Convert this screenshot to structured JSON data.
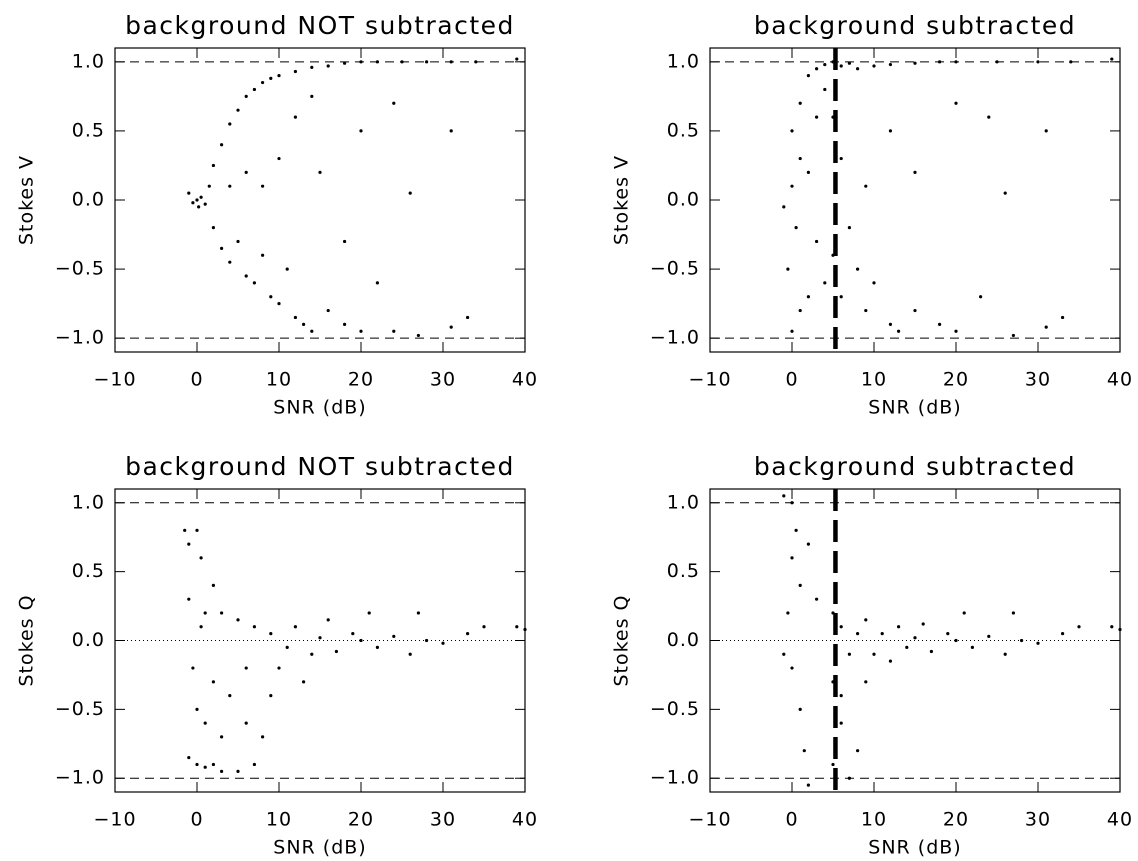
{
  "chart_data": [
    {
      "type": "scatter",
      "title": "background NOT subtracted",
      "xlabel": "SNR (dB)",
      "ylabel": "Stokes V",
      "color": "#000000",
      "xlim": [
        -10,
        40
      ],
      "ylim": [
        -1.1,
        1.1
      ],
      "xticks": [
        {
          "value": -10,
          "label": "−10"
        },
        0,
        10,
        20,
        30,
        40
      ],
      "yticks": [
        {
          "value": -1,
          "label": "−1.0"
        },
        {
          "value": -0.5,
          "label": "−0.5"
        },
        {
          "value": 0,
          "label": "0.0"
        },
        {
          "value": 0.5,
          "label": "0.5"
        },
        {
          "value": 1,
          "label": "1.0"
        }
      ],
      "dashed_hlines": [
        -1,
        1
      ],
      "x": [
        0,
        0.5,
        -1,
        1,
        0.2,
        -0.5,
        1.5,
        2,
        3,
        4,
        5,
        6,
        7,
        8,
        9,
        10,
        12,
        14,
        16,
        18,
        20,
        22,
        25,
        28,
        31,
        34,
        39,
        31,
        26,
        2,
        3,
        4,
        5,
        6,
        7,
        8,
        9,
        10,
        11,
        12,
        13,
        14,
        16,
        18,
        20,
        22,
        24,
        27,
        31,
        33,
        10,
        12,
        15,
        8,
        14,
        20,
        24,
        18,
        6,
        4
      ],
      "values": [
        0,
        0.02,
        0.05,
        -0.03,
        -0.05,
        -0.02,
        0.1,
        0.25,
        0.4,
        0.55,
        0.65,
        0.75,
        0.8,
        0.85,
        0.88,
        0.9,
        0.93,
        0.96,
        0.97,
        0.99,
        1,
        1,
        1,
        1,
        1,
        1,
        1.02,
        0.5,
        0.05,
        -0.2,
        -0.35,
        -0.45,
        -0.3,
        -0.55,
        -0.6,
        -0.4,
        -0.7,
        -0.75,
        -0.5,
        -0.85,
        -0.9,
        -0.95,
        -0.8,
        -0.9,
        -0.95,
        -0.6,
        -0.95,
        -0.98,
        -0.92,
        -0.85,
        0.3,
        0.6,
        0.2,
        0.1,
        0.75,
        0.5,
        0.7,
        -0.3,
        0.2,
        0.1
      ]
    },
    {
      "type": "scatter",
      "title": "background subtracted",
      "xlabel": "SNR (dB)",
      "ylabel": "Stokes V",
      "color": "#000000",
      "xlim": [
        -10,
        40
      ],
      "ylim": [
        -1.1,
        1.1
      ],
      "xticks": [
        {
          "value": -10,
          "label": "−10"
        },
        0,
        10,
        20,
        30,
        40
      ],
      "yticks": [
        {
          "value": -1,
          "label": "−1.0"
        },
        {
          "value": -0.5,
          "label": "−0.5"
        },
        {
          "value": 0,
          "label": "0.0"
        },
        {
          "value": 0.5,
          "label": "0.5"
        },
        {
          "value": 1,
          "label": "1.0"
        }
      ],
      "dashed_hlines": [
        -1,
        1
      ],
      "vline": 5.3,
      "x": [
        0,
        -1,
        0.5,
        1,
        0,
        -0.5,
        1,
        2,
        3,
        4,
        5,
        5,
        5,
        6,
        7,
        8,
        10,
        12,
        15,
        18,
        20,
        25,
        30,
        34,
        39,
        31,
        26,
        3,
        4,
        6,
        7,
        8,
        9,
        10,
        12,
        13,
        15,
        18,
        20,
        23,
        27,
        31,
        33,
        2,
        3,
        6,
        9,
        12,
        15,
        0,
        2,
        4,
        1,
        20,
        24
      ],
      "values": [
        0.1,
        -0.05,
        -0.2,
        0.3,
        0.5,
        -0.5,
        -0.8,
        0.9,
        0.95,
        0.98,
        1,
        0.6,
        -0.4,
        0.97,
        0.99,
        0.95,
        0.97,
        0.98,
        0.99,
        1,
        1,
        1,
        1,
        1,
        1.02,
        0.5,
        0.05,
        -0.3,
        -0.6,
        -0.7,
        -0.2,
        -0.5,
        -0.8,
        -0.6,
        -0.9,
        -0.95,
        -0.8,
        -0.9,
        -0.95,
        -0.7,
        -0.98,
        -0.92,
        -0.85,
        0.2,
        0.6,
        0.3,
        0.1,
        0.5,
        0.2,
        -0.95,
        -0.7,
        0.8,
        0.7,
        0.7,
        0.6
      ]
    },
    {
      "type": "scatter",
      "title": "background NOT subtracted",
      "xlabel": "SNR (dB)",
      "ylabel": "Stokes Q",
      "color": "#000000",
      "xlim": [
        -10,
        40
      ],
      "ylim": [
        -1.1,
        1.1
      ],
      "xticks": [
        {
          "value": -10,
          "label": "−10"
        },
        0,
        10,
        20,
        30,
        40
      ],
      "yticks": [
        {
          "value": -1,
          "label": "−1.0"
        },
        {
          "value": -0.5,
          "label": "−0.5"
        },
        {
          "value": 0,
          "label": "0.0"
        },
        {
          "value": 0.5,
          "label": "0.5"
        },
        {
          "value": 1,
          "label": "1.0"
        }
      ],
      "dashed_hlines": [
        -1,
        1
      ],
      "dotted_hlines": [
        0
      ],
      "x": [
        -1.5,
        -1,
        0,
        0.5,
        -1,
        -0.5,
        0,
        -1,
        0,
        1,
        2,
        3,
        5,
        7,
        8,
        6,
        4,
        2,
        1,
        3,
        5,
        7,
        9,
        10,
        11,
        12,
        14,
        15,
        17,
        19,
        20,
        22,
        24,
        26,
        27,
        28,
        30,
        33,
        35,
        39,
        40,
        13,
        9,
        6,
        3,
        1,
        2,
        0.5,
        16,
        21
      ],
      "values": [
        0.8,
        0.7,
        0.8,
        0.6,
        0.3,
        -0.2,
        -0.5,
        -0.85,
        -0.9,
        -0.92,
        -0.9,
        -0.95,
        -0.95,
        -0.9,
        -0.7,
        -0.6,
        -0.4,
        -0.3,
        0.2,
        0.2,
        0.15,
        0.1,
        0.05,
        -0.2,
        -0.05,
        0.1,
        -0.1,
        0.02,
        -0.08,
        0.05,
        0,
        -0.05,
        0.03,
        -0.1,
        0.2,
        0,
        -0.02,
        0.05,
        0.1,
        0.1,
        0.08,
        -0.3,
        -0.4,
        -0.2,
        -0.7,
        -0.6,
        0.4,
        0.1,
        0.15,
        0.2
      ]
    },
    {
      "type": "scatter",
      "title": "background subtracted",
      "xlabel": "SNR (dB)",
      "ylabel": "Stokes Q",
      "color": "#000000",
      "xlim": [
        -10,
        40
      ],
      "ylim": [
        -1.1,
        1.1
      ],
      "xticks": [
        {
          "value": -10,
          "label": "−10"
        },
        0,
        10,
        20,
        30,
        40
      ],
      "yticks": [
        {
          "value": -1,
          "label": "−1.0"
        },
        {
          "value": -0.5,
          "label": "−0.5"
        },
        {
          "value": 0,
          "label": "0.0"
        },
        {
          "value": 0.5,
          "label": "0.5"
        },
        {
          "value": 1,
          "label": "1.0"
        }
      ],
      "dashed_hlines": [
        -1,
        1
      ],
      "dotted_hlines": [
        0
      ],
      "vline": 5.3,
      "x": [
        -1,
        0,
        0.5,
        0,
        1,
        -0.5,
        0,
        1,
        1.5,
        2,
        -1,
        5,
        5,
        5,
        6,
        6,
        7,
        8,
        7,
        8,
        9,
        10,
        11,
        12,
        13,
        14,
        15,
        17,
        19,
        20,
        22,
        24,
        26,
        27,
        28,
        30,
        33,
        35,
        39,
        40,
        6,
        9,
        16,
        21,
        3,
        2
      ],
      "values": [
        1.05,
        1,
        0.8,
        0.6,
        0.4,
        0.2,
        -0.2,
        -0.5,
        -0.8,
        -1.05,
        -0.1,
        0.2,
        -0.3,
        -0.9,
        -0.6,
        0.1,
        -1,
        -0.8,
        -0.1,
        0.05,
        -0.3,
        -0.1,
        0.05,
        -0.15,
        0.1,
        -0.05,
        0.02,
        -0.08,
        0.05,
        0,
        -0.05,
        0.03,
        -0.1,
        0.2,
        0,
        -0.02,
        0.05,
        0.1,
        0.1,
        0.08,
        -0.4,
        0.15,
        0.12,
        0.2,
        0.3,
        0.7
      ]
    }
  ]
}
